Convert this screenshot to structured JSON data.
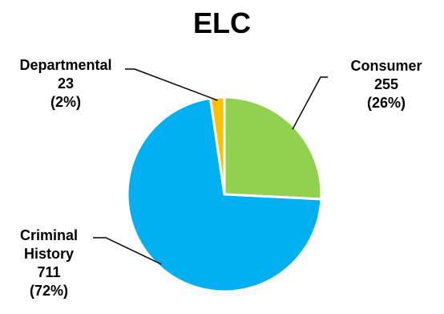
{
  "chart_data": {
    "type": "pie",
    "title": "ELC",
    "slices": [
      {
        "key": "consumer",
        "label": "Consumer",
        "value": 255,
        "percent": "(26%)",
        "color": "#92d050"
      },
      {
        "key": "criminal",
        "label": "Criminal History",
        "label_lines": [
          "Criminal",
          "History"
        ],
        "value": 711,
        "percent": "(72%)",
        "color": "#00b0f0"
      },
      {
        "key": "departmental",
        "label": "Departmental",
        "value": 23,
        "percent": "(2%)",
        "color": "#ffc000"
      }
    ],
    "start": "12 o'clock",
    "direction": "clockwise",
    "legend": "none"
  }
}
